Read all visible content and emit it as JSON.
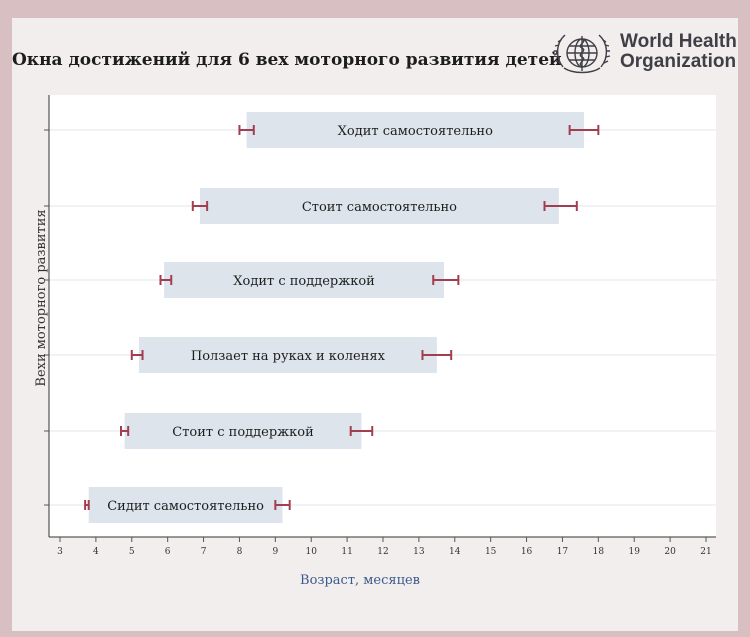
{
  "title": "Окна достижений для 6 вех моторного развития детей",
  "logo": {
    "line1": "World Health",
    "line2": "Organization",
    "icon": "who-emblem-icon"
  },
  "colors": {
    "frame": "#d8bfc2",
    "panel": "#f3eeee",
    "bar": "#dde4ec",
    "whisker": "#a23e4f",
    "axis_text": "#3a5a8a",
    "grid": "#e2e4ea"
  },
  "chart_data": {
    "type": "bar",
    "orientation": "horizontal",
    "title": "Окна достижений для 6 вех моторного развития детей",
    "xlabel": "Возраст, месяцев",
    "ylabel": "Вехи моторного развития",
    "xlim": [
      3,
      21
    ],
    "xticks": [
      "3",
      "4",
      "5",
      "6",
      "7",
      "8",
      "9",
      "10",
      "11",
      "12",
      "13",
      "14",
      "15",
      "16",
      "17",
      "18",
      "19",
      "20",
      "21"
    ],
    "grid": "horizontal",
    "series": [
      {
        "label": "Ходит самостоятельно",
        "start": 8.2,
        "end": 17.6,
        "ci_low": [
          8.0,
          8.4
        ],
        "ci_high": [
          17.2,
          18.0
        ]
      },
      {
        "label": "Стоит самостоятельно",
        "start": 6.9,
        "end": 16.9,
        "ci_low": [
          6.7,
          7.1
        ],
        "ci_high": [
          16.5,
          17.4
        ]
      },
      {
        "label": "Ходит с поддержкой",
        "start": 5.9,
        "end": 13.7,
        "ci_low": [
          5.8,
          6.1
        ],
        "ci_high": [
          13.4,
          14.1
        ]
      },
      {
        "label": "Ползает на руках и коленях",
        "start": 5.2,
        "end": 13.5,
        "ci_low": [
          5.0,
          5.3
        ],
        "ci_high": [
          13.1,
          13.9
        ]
      },
      {
        "label": "Стоит с поддержкой",
        "start": 4.8,
        "end": 11.4,
        "ci_low": [
          4.7,
          4.9
        ],
        "ci_high": [
          11.1,
          11.7
        ]
      },
      {
        "label": "Сидит самостоятельно",
        "start": 3.8,
        "end": 9.2,
        "ci_low": [
          3.7,
          3.8
        ],
        "ci_high": [
          9.0,
          9.4
        ]
      }
    ]
  }
}
